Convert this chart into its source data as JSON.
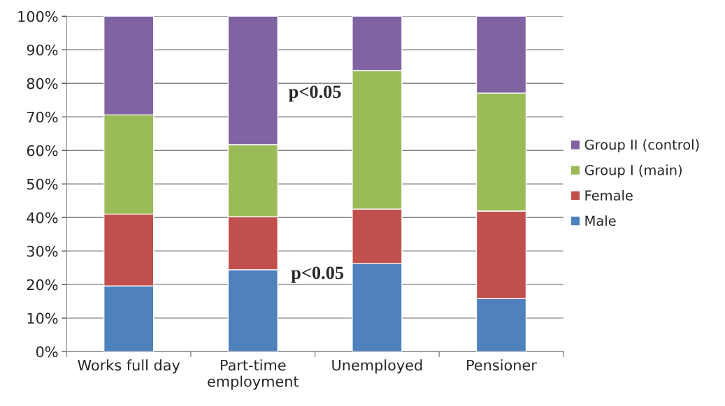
{
  "chart_data": {
    "type": "bar",
    "stacked": true,
    "categories": [
      "Works full day",
      "Part-time\nemployment",
      "Unemployed",
      "Pensioner"
    ],
    "series": [
      {
        "name": "Male",
        "color": "#4f81bd",
        "values": [
          19.6,
          24.4,
          26.2,
          15.8
        ]
      },
      {
        "name": "Female",
        "color": "#c0504d",
        "values": [
          21.4,
          15.8,
          16.3,
          26.1
        ]
      },
      {
        "name": "Group I (main)",
        "color": "#9bbb59",
        "values": [
          29.6,
          21.5,
          41.3,
          35.2
        ]
      },
      {
        "name": "Group II (control)",
        "color": "#8064a2",
        "values": [
          29.4,
          38.3,
          16.2,
          22.9
        ]
      }
    ],
    "ylim": [
      0,
      100
    ],
    "yticks": [
      {
        "value": 0,
        "label": "0%"
      },
      {
        "value": 10,
        "label": "10%"
      },
      {
        "value": 20,
        "label": "20%"
      },
      {
        "value": 30,
        "label": "30%"
      },
      {
        "value": 40,
        "label": "40%"
      },
      {
        "value": 50,
        "label": "50%"
      },
      {
        "value": 60,
        "label": "60%"
      },
      {
        "value": 70,
        "label": "70%"
      },
      {
        "value": 80,
        "label": "80%"
      },
      {
        "value": 90,
        "label": "90%"
      },
      {
        "value": 100,
        "label": "100%"
      }
    ],
    "grid": "y",
    "legend": "right",
    "annotations": [
      "p<0.05",
      "p<0.05"
    ]
  }
}
